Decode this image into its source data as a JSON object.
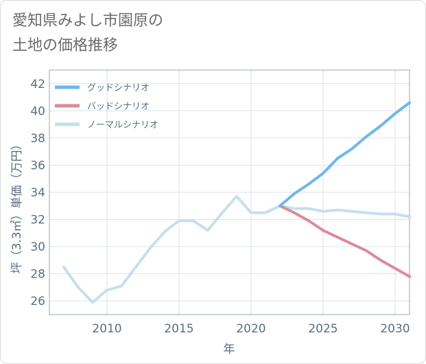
{
  "title": {
    "line1": "愛知県みよし市園原の",
    "line2": "土地の価格推移"
  },
  "chart_data": {
    "type": "line",
    "xlabel": "年",
    "ylabel": "坪（3.3㎡）単価（万円）",
    "xlim": [
      2006,
      2031
    ],
    "ylim": [
      25,
      43
    ],
    "xticks": [
      2010,
      2015,
      2020,
      2025,
      2030
    ],
    "yticks": [
      26,
      28,
      30,
      32,
      34,
      36,
      38,
      40,
      42
    ],
    "grid": true,
    "legend_position": "top-left",
    "series": [
      {
        "name": "グッドシナリオ",
        "color": "#6cb8ee",
        "x": [
          2022,
          2023,
          2024,
          2025,
          2026,
          2027,
          2028,
          2029,
          2030,
          2031
        ],
        "y": [
          33.0,
          33.9,
          34.6,
          35.4,
          36.5,
          37.2,
          38.1,
          38.9,
          39.8,
          40.6
        ]
      },
      {
        "name": "バッドシナリオ",
        "color": "#dd8a96",
        "x": [
          2022,
          2023,
          2024,
          2025,
          2026,
          2027,
          2028,
          2029,
          2030,
          2031
        ],
        "y": [
          33.0,
          32.5,
          31.9,
          31.2,
          30.7,
          30.2,
          29.7,
          29.0,
          28.4,
          27.8
        ]
      },
      {
        "name": "ノーマルシナリオ",
        "color": "#c5dff0",
        "x": [
          2007,
          2008,
          2009,
          2010,
          2011,
          2012,
          2013,
          2014,
          2015,
          2016,
          2017,
          2018,
          2019,
          2020,
          2021,
          2022,
          2023,
          2024,
          2025,
          2026,
          2027,
          2028,
          2029,
          2030,
          2031
        ],
        "y": [
          28.5,
          27.0,
          25.9,
          26.8,
          27.1,
          28.5,
          29.9,
          31.1,
          31.9,
          31.9,
          31.2,
          32.5,
          33.7,
          32.5,
          32.5,
          33.0,
          32.8,
          32.8,
          32.6,
          32.7,
          32.6,
          32.5,
          32.4,
          32.4,
          32.2
        ]
      }
    ]
  }
}
